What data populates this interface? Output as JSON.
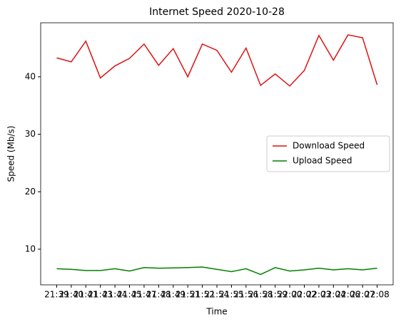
{
  "chart_data": {
    "type": "line",
    "title": "Internet Speed 2020-10-28",
    "x_label": "Time",
    "y_label": "Speed (Mb/s)",
    "categories": [
      "21:39",
      "21:40",
      "21:41",
      "21:43",
      "21:44",
      "21:45",
      "21:47",
      "21:48",
      "21:49",
      "21:51",
      "21:52",
      "21:54",
      "21:55",
      "21:56",
      "21:58",
      "21:59",
      "22:00",
      "22:02",
      "22:03",
      "22:04",
      "22:06",
      "22:07",
      "22:08"
    ],
    "series": [
      {
        "name": "Download Speed",
        "color": "#dd1111",
        "values": [
          43.3,
          42.6,
          46.2,
          39.8,
          41.9,
          43.2,
          45.7,
          42.0,
          44.9,
          40.0,
          45.7,
          44.6,
          40.8,
          45.0,
          38.5,
          40.5,
          38.4,
          41.1,
          47.2,
          42.9,
          47.3,
          46.8,
          38.6
        ]
      },
      {
        "name": "Upload Speed",
        "color": "#008000",
        "values": [
          6.6,
          6.5,
          6.3,
          6.3,
          6.6,
          6.2,
          6.8,
          6.7,
          6.75,
          6.8,
          6.9,
          6.5,
          6.1,
          6.6,
          5.6,
          6.8,
          6.2,
          6.4,
          6.7,
          6.4,
          6.6,
          6.4,
          6.7
        ]
      }
    ],
    "ylim": [
      3.8,
      49.4
    ],
    "yticks": [
      10,
      20,
      30,
      40
    ],
    "legend": "center right"
  }
}
